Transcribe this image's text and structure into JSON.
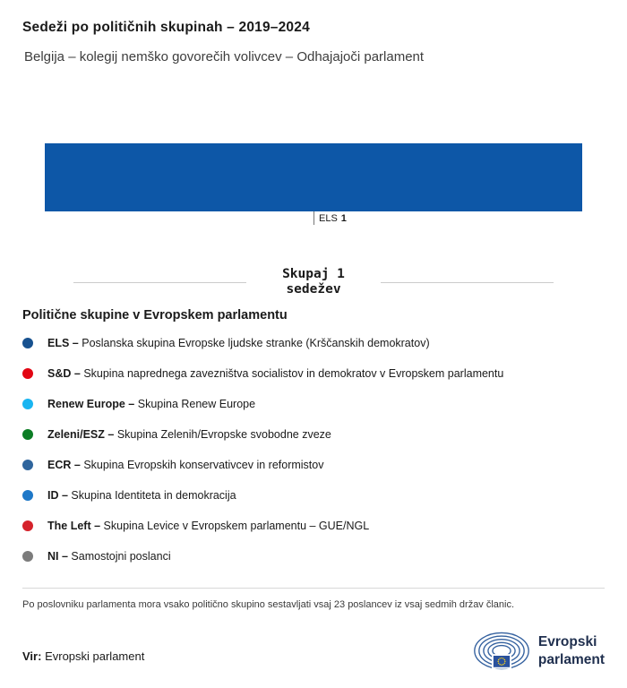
{
  "header": {
    "title": "Sedeži po političnih skupinah – 2019–2024",
    "subtitle": "Belgija – kolegij nemško govorečih volivcev – Odhajajoči parlament"
  },
  "chart_data": {
    "type": "bar",
    "orientation": "horizontal-stacked",
    "title": "Sedeži po političnih skupinah – 2019–2024",
    "subtitle": "Belgija – kolegij nemško govorečih volivcev – Odhajajoči parlament",
    "categories": [
      "ELS"
    ],
    "values": [
      1
    ],
    "colors": [
      "#0d57a7"
    ],
    "total_seats": 1,
    "total_label": "Skupaj 1 sedežev",
    "legend_position": "bottom"
  },
  "bar_label": {
    "group": "ELS",
    "seats": "1"
  },
  "total": {
    "line1": "Skupaj 1",
    "line2": "sedežev"
  },
  "legend": {
    "heading": "Politične skupine v Evropskem parlamentu",
    "items": [
      {
        "abbr": "ELS –",
        "desc": "Poslanska skupina Evropske ljudske stranke (Krščanskih demokratov)",
        "color": "#17518f"
      },
      {
        "abbr": "S&D –",
        "desc": "Skupina naprednega zavezništva socialistov in demokratov v Evropskem parlamentu",
        "color": "#e20613"
      },
      {
        "abbr": "Renew Europe –",
        "desc": "Skupina Renew Europe",
        "color": "#19b5f1"
      },
      {
        "abbr": "Zeleni/ESZ –",
        "desc": "Skupina Zelenih/Evropske svobodne zveze",
        "color": "#0c7d25"
      },
      {
        "abbr": "ECR –",
        "desc": "Skupina Evropskih konservativcev in reformistov",
        "color": "#2f659d"
      },
      {
        "abbr": "ID –",
        "desc": "Skupina Identiteta in demokracija",
        "color": "#1e78c8"
      },
      {
        "abbr": "The Left –",
        "desc": "Skupina Levice v Evropskem parlamentu – GUE/NGL",
        "color": "#d5222b"
      },
      {
        "abbr": "NI –",
        "desc": "Samostojni poslanci",
        "color": "#7c7c7c"
      }
    ]
  },
  "footnote": "Po poslovniku parlamenta mora vsako politično skupino sestavljati vsaj 23 poslancev iz vsaj sedmih držav članic.",
  "source": {
    "label": "Vir:",
    "value": "Evropski parlament"
  },
  "logo": {
    "line1": "Evropski",
    "line2": "parlament"
  }
}
